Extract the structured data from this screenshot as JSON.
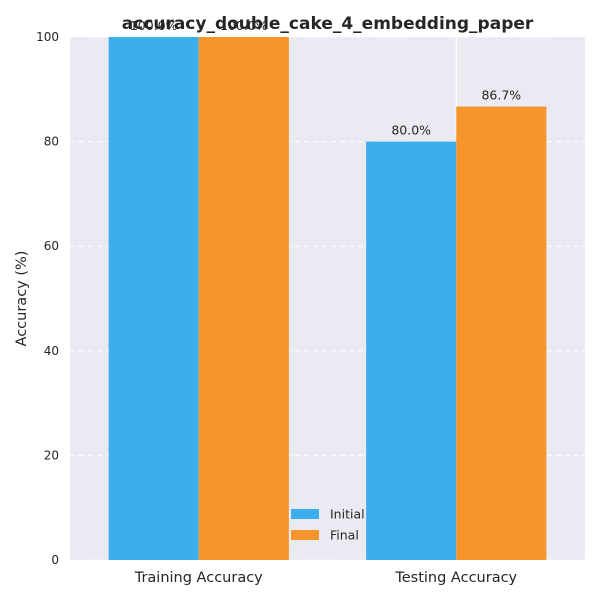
{
  "chart_data": {
    "type": "bar",
    "title": "accuracy_double_cake_4_embedding_paper",
    "xlabel": "",
    "ylabel": "Accuracy (%)",
    "ylim": [
      0,
      100
    ],
    "yticks": [
      0,
      20,
      40,
      60,
      80,
      100
    ],
    "categories": [
      "Training Accuracy",
      "Testing Accuracy"
    ],
    "series": [
      {
        "name": "Initial",
        "values": [
          100.0,
          80.0
        ],
        "labels": [
          "100.0%",
          "80.0%"
        ],
        "color": "#3daeeb"
      },
      {
        "name": "Final",
        "values": [
          100.0,
          86.7
        ],
        "labels": [
          "100.0%",
          "86.7%"
        ],
        "color": "#f7952d"
      }
    ],
    "grid": true,
    "legend_position": "lower-center",
    "background": "#eaeaf2"
  }
}
